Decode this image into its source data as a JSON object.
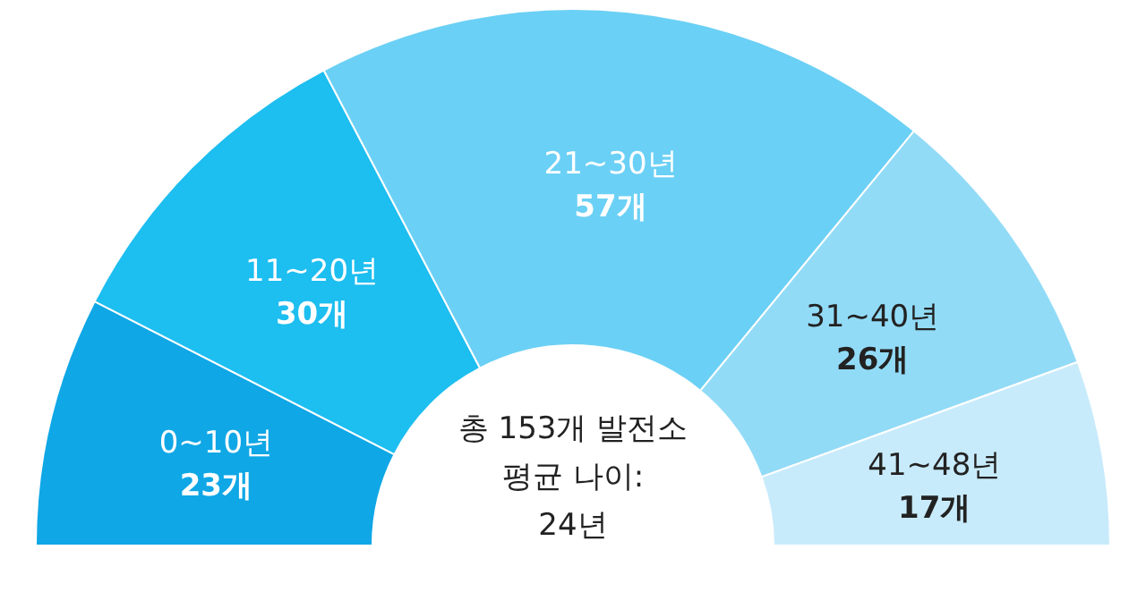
{
  "chart_data": {
    "type": "donut",
    "categories": [
      "0~10년",
      "11~20년",
      "21~30년",
      "31~40년",
      "41~48년"
    ],
    "values": [
      23,
      30,
      57,
      26,
      17
    ],
    "value_labels": [
      "23개",
      "30개",
      "57개",
      "26개",
      "17개"
    ],
    "colors": [
      "#0fa7e6",
      "#1dbef0",
      "#6bd0f5",
      "#92dbf7",
      "#c8ebfb"
    ],
    "annotations": [
      "총 153개 발전소",
      "평균 나이:",
      "24년"
    ]
  }
}
